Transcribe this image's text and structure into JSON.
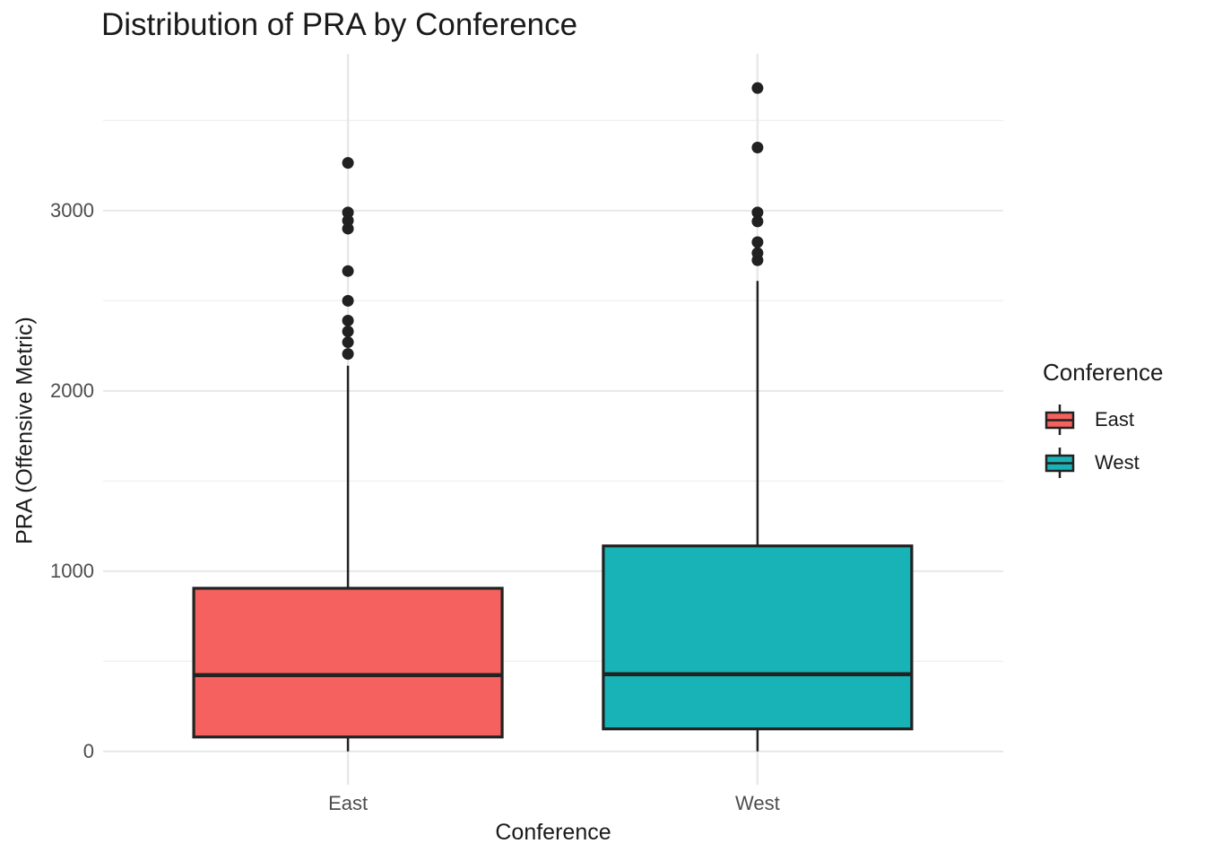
{
  "chart_data": {
    "type": "boxplot",
    "title": "Distribution of PRA by Conference",
    "xlabel": "Conference",
    "ylabel": "PRA (Offensive Metric)",
    "legend_title": "Conference",
    "legend_position": "right",
    "background_color": "#FFFFFF",
    "grid": {
      "show_major": true,
      "show_minor": true,
      "major_y_values": [
        0,
        1000,
        2000,
        3000
      ],
      "minor_y_values": [
        500,
        1500,
        2500,
        3500
      ],
      "major_color": "#E8E8E8",
      "minor_color": "#F0F0F0"
    },
    "y_axis": {
      "tick_values": [
        0,
        1000,
        2000,
        3000
      ],
      "tick_labels": [
        "0",
        "1000",
        "2000",
        "3000"
      ],
      "range": [
        -185,
        3870
      ]
    },
    "categories": [
      "East",
      "West"
    ],
    "series": [
      {
        "name": "East",
        "fill": "#F4615E",
        "stroke": "#222222",
        "whisker_low": 0,
        "q1": 80,
        "median": 423,
        "q3": 905,
        "whisker_high": 2140,
        "outliers": [
          2205,
          2270,
          2330,
          2390,
          2500,
          2665,
          2900,
          2945,
          2990,
          3265
        ]
      },
      {
        "name": "West",
        "fill": "#17B3B7",
        "stroke": "#222222",
        "whisker_low": 0,
        "q1": 125,
        "median": 428,
        "q3": 1140,
        "whisker_high": 2610,
        "outliers": [
          2725,
          2765,
          2825,
          2940,
          2990,
          3350,
          3680
        ]
      }
    ],
    "outlier_color": "#212121",
    "text_colors": {
      "tick_label": "#4D4D4D",
      "title": "#1A1A1A"
    }
  }
}
